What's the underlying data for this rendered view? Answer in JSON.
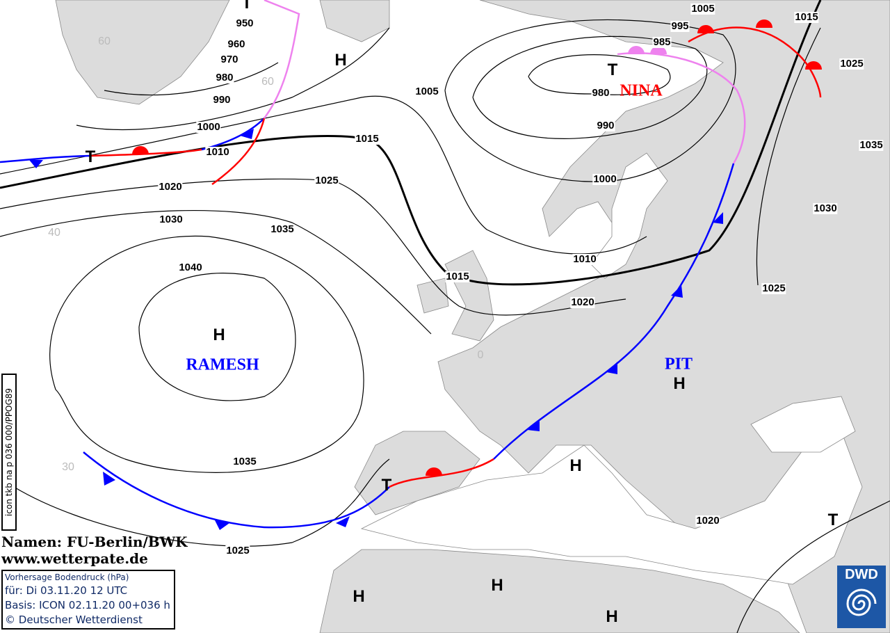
{
  "isobar_labels": [
    "950",
    "960",
    "970",
    "980",
    "990",
    "1000",
    "1010",
    "1020",
    "1030",
    "1040",
    "1035",
    "1035",
    "1025",
    "1015",
    "1005",
    "985",
    "995",
    "1005",
    "1015",
    "1025",
    "1035",
    "1030",
    "1025",
    "980",
    "990",
    "1000",
    "1010",
    "1015",
    "1020",
    "1020",
    "1025",
    "1015"
  ],
  "pressure_centers": [
    "T",
    "H",
    "T",
    "T",
    "H",
    "H",
    "H",
    "T",
    "T",
    "H",
    "H",
    "H"
  ],
  "systems": {
    "nina": "NINA",
    "ramesh": "RAMESH",
    "pit": "PIT"
  },
  "grid_labels": [
    "60",
    "60",
    "40",
    "30",
    "0"
  ],
  "credits": {
    "names": "Namen: FU-Berlin/BWK",
    "website": "www.wetterpate.de"
  },
  "info": {
    "title": "Vorhersage Bodendruck (hPa)",
    "valid": "für:  Di 03.11.20  12 UTC",
    "basis": "Basis: ICON  02.11.20 00+036 h",
    "copyright": "© Deutscher Wetterdienst"
  },
  "product_code": "icon tkb na p 036 000/PPOG89",
  "logo": "DWD",
  "colors": {
    "land": "#dcdcdc",
    "cold_front": "#0000ff",
    "warm_front": "#ff0000",
    "occlusion": "#ee82ee",
    "high_name": "#0000ff",
    "low_name": "#ff0000",
    "logo": "#1d57a6"
  }
}
